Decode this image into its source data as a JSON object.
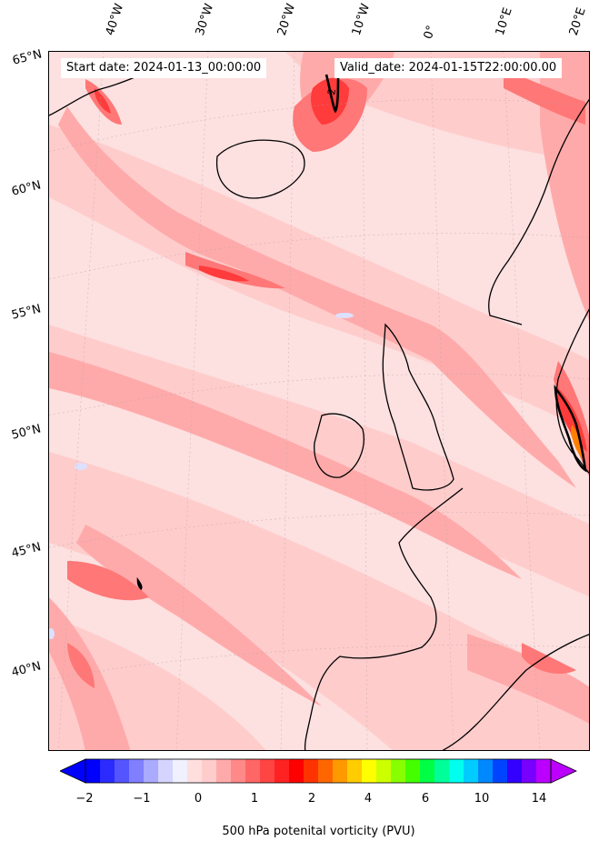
{
  "header": {
    "start_date": "Start date: 2024-01-13_00:00:00",
    "valid_date": "Valid_date: 2024-01-15T22:00:00.00"
  },
  "map": {
    "lon_labels": [
      "40°W",
      "30°W",
      "20°W",
      "10°W",
      "0°",
      "10°E",
      "20°E"
    ],
    "lat_labels": [
      "65°N",
      "60°N",
      "55°N",
      "50°N",
      "45°N",
      "40°N"
    ],
    "contour_label": "2",
    "field_colors": {
      "background": "#fde0e0",
      "light": "#ffcccc",
      "medium": "#ffaaaa",
      "strong": "#ff7777",
      "intense": "#ff3b3b",
      "max": "#ff8000"
    }
  },
  "colorbar": {
    "label": "500 hPa potenital vorticity (PVU)",
    "ticks": [
      "−2",
      "−1",
      "0",
      "1",
      "2",
      "4",
      "6",
      "10",
      "14"
    ],
    "colors": [
      "#0000ff",
      "#2b2bff",
      "#5555ff",
      "#7f7fff",
      "#aaaaff",
      "#d4d4ff",
      "#f0f0ff",
      "#ffdede",
      "#ffcccc",
      "#ffaaaa",
      "#ff8888",
      "#ff6666",
      "#ff4444",
      "#ff2222",
      "#ff0000",
      "#ff3300",
      "#ff6600",
      "#ff9900",
      "#ffcc00",
      "#ffff00",
      "#ccff00",
      "#88ff00",
      "#44ff00",
      "#00ff44",
      "#00ff99",
      "#00ffee",
      "#00ccff",
      "#0088ff",
      "#0044ff",
      "#3300ff",
      "#7700ff",
      "#bb00ff"
    ],
    "min_color": "#0000ff",
    "max_color": "#bb00ff"
  }
}
